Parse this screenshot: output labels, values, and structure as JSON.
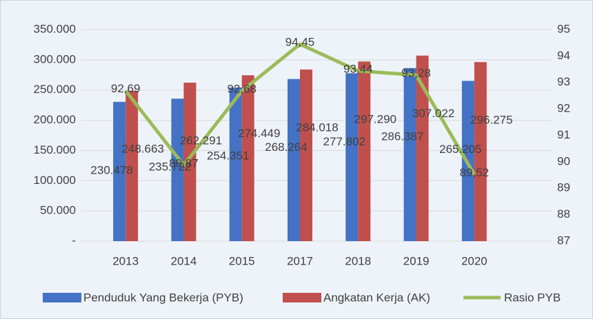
{
  "chart_data": {
    "type": "bar+line",
    "categories": [
      "2013",
      "2014",
      "2015",
      "2017",
      "2018",
      "2019",
      "2020"
    ],
    "series": [
      {
        "name": "Penduduk Yang Bekerja (PYB)",
        "color": "#4472c4",
        "type": "bar",
        "values": [
          230478,
          235722,
          254351,
          268264,
          277802,
          286387,
          265205
        ],
        "value_labels": [
          "230.478",
          "235.722",
          "254.351",
          "268.264",
          "277.802",
          "286.387",
          "265.205"
        ]
      },
      {
        "name": "Angkatan Kerja (AK)",
        "color": "#c0504d",
        "type": "bar",
        "values": [
          248663,
          262291,
          274449,
          284018,
          297290,
          307022,
          296275
        ],
        "value_labels": [
          "248.663",
          "262.291",
          "274.449",
          "284.018",
          "297.290",
          "307.022",
          "296.275"
        ]
      },
      {
        "name": "Rasio PYB",
        "color": "#9bbb59",
        "type": "line",
        "axis": "y2",
        "values": [
          92.69,
          89.87,
          92.68,
          94.45,
          93.44,
          93.28,
          89.52
        ],
        "value_labels": [
          "92,69",
          "89,87",
          "92,68",
          "94,45",
          "93,44",
          "93,28",
          "89,52"
        ]
      }
    ],
    "ylim": [
      0,
      350000
    ],
    "yticks": [
      {
        "value": 0,
        "label": "-"
      },
      {
        "value": 50000,
        "label": "50.000"
      },
      {
        "value": 100000,
        "label": "100.000"
      },
      {
        "value": 150000,
        "label": "150.000"
      },
      {
        "value": 200000,
        "label": "200.000"
      },
      {
        "value": 250000,
        "label": "250.000"
      },
      {
        "value": 300000,
        "label": "300.000"
      },
      {
        "value": 350000,
        "label": "350.000"
      }
    ],
    "y2lim": [
      87,
      95
    ],
    "y2ticks": [
      87,
      88,
      89,
      90,
      91,
      92,
      93,
      94,
      95
    ],
    "grid": true,
    "legend": "bottom"
  }
}
